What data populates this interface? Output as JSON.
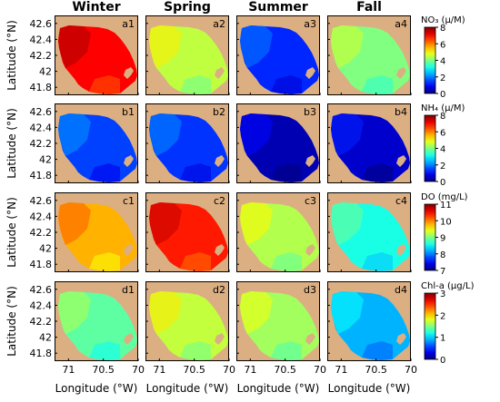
{
  "chart_data": {
    "type": "heatmap",
    "columns": [
      "Winter",
      "Spring",
      "Summer",
      "Fall"
    ],
    "xlabel": "Longitude (°W)",
    "ylabel": "Latitude (°N)",
    "xticks": [
      "71",
      "70.5",
      "70"
    ],
    "xtick_values": [
      71,
      70.5,
      70
    ],
    "xlim": [
      71.2,
      70.0
    ],
    "yticks": [
      "42.6",
      "42.4",
      "42.2",
      "42",
      "41.8"
    ],
    "ytick_values": [
      42.6,
      42.4,
      42.2,
      42.0,
      41.8
    ],
    "ylim": [
      41.7,
      42.7
    ],
    "rows": [
      {
        "variable": "NO3",
        "colorbar_title": "NO₃ (μ/M)",
        "range": [
          0,
          8
        ],
        "ticks": [
          "0",
          "2",
          "4",
          "6",
          "8"
        ],
        "tick_values": [
          0,
          2,
          4,
          6,
          8
        ],
        "panels": [
          {
            "label": "a1",
            "value": 7.0
          },
          {
            "label": "a2",
            "value": 4.5
          },
          {
            "label": "a3",
            "value": 1.3
          },
          {
            "label": "a4",
            "value": 4.0
          }
        ]
      },
      {
        "variable": "NH4",
        "colorbar_title": "NH₄ (μ/M)",
        "range": [
          0,
          8
        ],
        "ticks": [
          "0",
          "2",
          "4",
          "6",
          "8"
        ],
        "tick_values": [
          0,
          2,
          4,
          6,
          8
        ],
        "panels": [
          {
            "label": "b1",
            "value": 1.5
          },
          {
            "label": "b2",
            "value": 1.4
          },
          {
            "label": "b3",
            "value": 0.4
          },
          {
            "label": "b4",
            "value": 0.6
          }
        ]
      },
      {
        "variable": "DO",
        "colorbar_title": "DO (mg/L)",
        "range": [
          7,
          11
        ],
        "ticks": [
          "7",
          "8",
          "9",
          "10",
          "11"
        ],
        "tick_values": [
          7,
          8,
          9,
          10,
          11
        ],
        "panels": [
          {
            "label": "c1",
            "value": 9.8
          },
          {
            "label": "c2",
            "value": 10.4
          },
          {
            "label": "c3",
            "value": 9.2
          },
          {
            "label": "c4",
            "value": 8.6
          }
        ]
      },
      {
        "variable": "Chl-a",
        "colorbar_title": "Chl-a (μg/L)",
        "range": [
          0,
          3
        ],
        "ticks": [
          "0",
          "1",
          "2",
          "3"
        ],
        "tick_values": [
          0,
          1,
          2,
          3
        ],
        "panels": [
          {
            "label": "d1",
            "value": 1.4
          },
          {
            "label": "d2",
            "value": 1.7
          },
          {
            "label": "d3",
            "value": 1.6
          },
          {
            "label": "d4",
            "value": 0.9
          }
        ]
      }
    ],
    "land_color": "#dcaf82",
    "colormap": "jet"
  }
}
